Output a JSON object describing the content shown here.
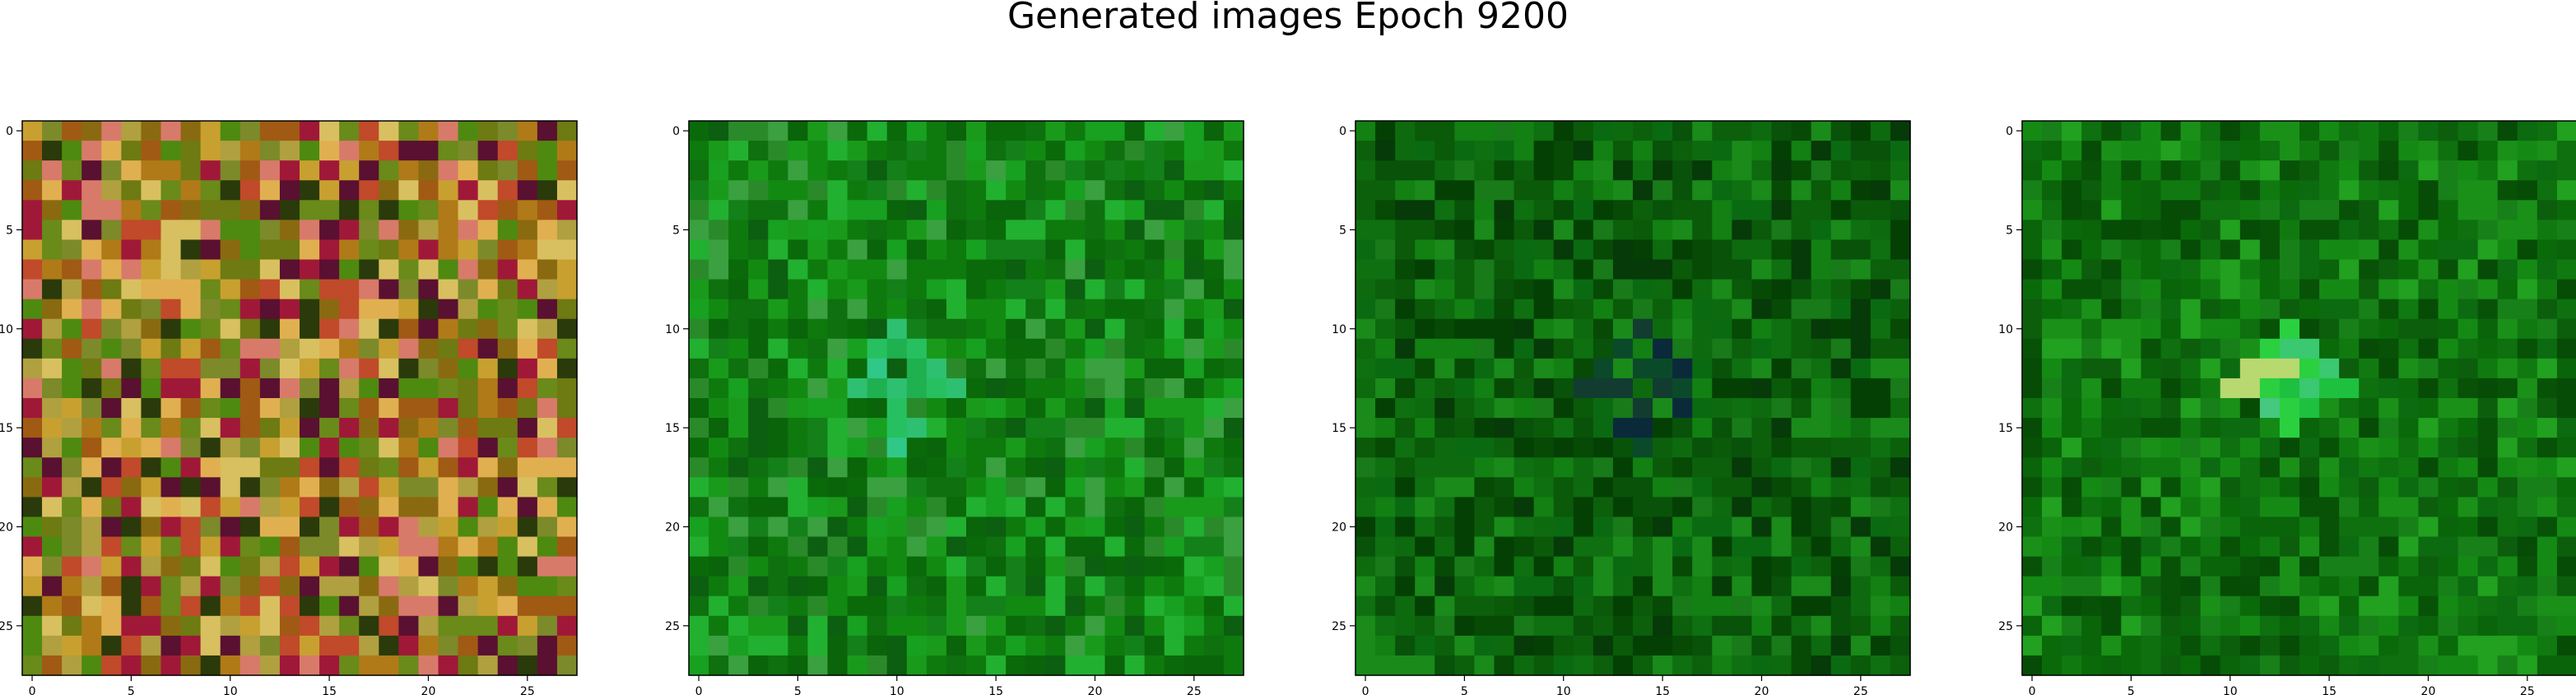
{
  "figure": {
    "title": "Generated images Epoch 9200"
  },
  "chart_data": [
    {
      "type": "heatmap",
      "title": "",
      "xlabel": "",
      "ylabel": "",
      "grid_size": [
        28,
        28
      ],
      "xlim": [
        -0.5,
        27.5
      ],
      "ylim": [
        27.5,
        -0.5
      ],
      "x_ticks": [
        0,
        5,
        10,
        15,
        20,
        25
      ],
      "y_ticks": [
        0,
        5,
        10,
        15,
        20,
        25
      ],
      "grid": false,
      "palette": [
        "#6e7a12",
        "#8a6a10",
        "#b07a18",
        "#c8a030",
        "#7c8a2a",
        "#a05a14",
        "#6a8a1a",
        "#c04a2a",
        "#a01838",
        "#5a1030",
        "#d8c060",
        "#d87a6a",
        "#4e8a10",
        "#b0a040",
        "#2a3a0a",
        "#e0b050"
      ],
      "seed": 11
    },
    {
      "type": "heatmap",
      "title": "",
      "xlabel": "",
      "ylabel": "",
      "grid_size": [
        28,
        28
      ],
      "xlim": [
        -0.5,
        27.5
      ],
      "ylim": [
        27.5,
        -0.5
      ],
      "x_ticks": [
        0,
        5,
        10,
        15,
        20,
        25
      ],
      "y_ticks": [
        0,
        5,
        10,
        15,
        20,
        25
      ],
      "grid": false,
      "palette": [
        "#0e7a0e",
        "#128a12",
        "#0a6a0a",
        "#1a9a1a",
        "#0c5e10",
        "#18a020",
        "#2a8a2a",
        "#0e700e",
        "#3aa040",
        "#0a640a",
        "#22b030",
        "#14801a"
      ],
      "highlight": {
        "center": [
          13,
          10
        ],
        "colors": [
          "#2ec070",
          "#30c888",
          "#1fb050",
          "#27c060"
        ]
      },
      "seed": 23
    },
    {
      "type": "heatmap",
      "title": "",
      "xlabel": "",
      "ylabel": "",
      "grid_size": [
        28,
        28
      ],
      "xlim": [
        -0.5,
        27.5
      ],
      "ylim": [
        27.5,
        -0.5
      ],
      "x_ticks": [
        0,
        5,
        10,
        15,
        20,
        25
      ],
      "y_ticks": [
        0,
        5,
        10,
        15,
        20,
        25
      ],
      "grid": false,
      "palette": [
        "#0a5a0a",
        "#0e6a0e",
        "#064a06",
        "#128012",
        "#08520a",
        "#0c600c",
        "#187a18",
        "#044004",
        "#0e7010",
        "#0a6a12",
        "#1a8a1a",
        "#063a08"
      ],
      "highlight": {
        "center": [
          13,
          14
        ],
        "colors": [
          "#0a2a3a",
          "#123c30",
          "#0a4a2a"
        ]
      },
      "seed": 37
    },
    {
      "type": "heatmap",
      "title": "",
      "xlabel": "",
      "ylabel": "",
      "grid_size": [
        28,
        28
      ],
      "xlim": [
        -0.5,
        27.5
      ],
      "ylim": [
        27.5,
        -0.5
      ],
      "x_ticks": [
        0,
        5,
        10,
        15,
        20,
        25
      ],
      "y_ticks": [
        0,
        5,
        10,
        15,
        20,
        25
      ],
      "grid": false,
      "palette": [
        "#0a6a0a",
        "#107a10",
        "#0c5e0c",
        "#148a14",
        "#085208",
        "#1a9018",
        "#0e700e",
        "#0a640a",
        "#22a020",
        "#0c6a10",
        "#188018",
        "#064c06"
      ],
      "highlight": {
        "center": [
          13,
          13
        ],
        "colors": [
          "#3ac870",
          "#b8d870",
          "#2ad040",
          "#46c880",
          "#1ec040"
        ]
      },
      "seed": 51
    }
  ]
}
